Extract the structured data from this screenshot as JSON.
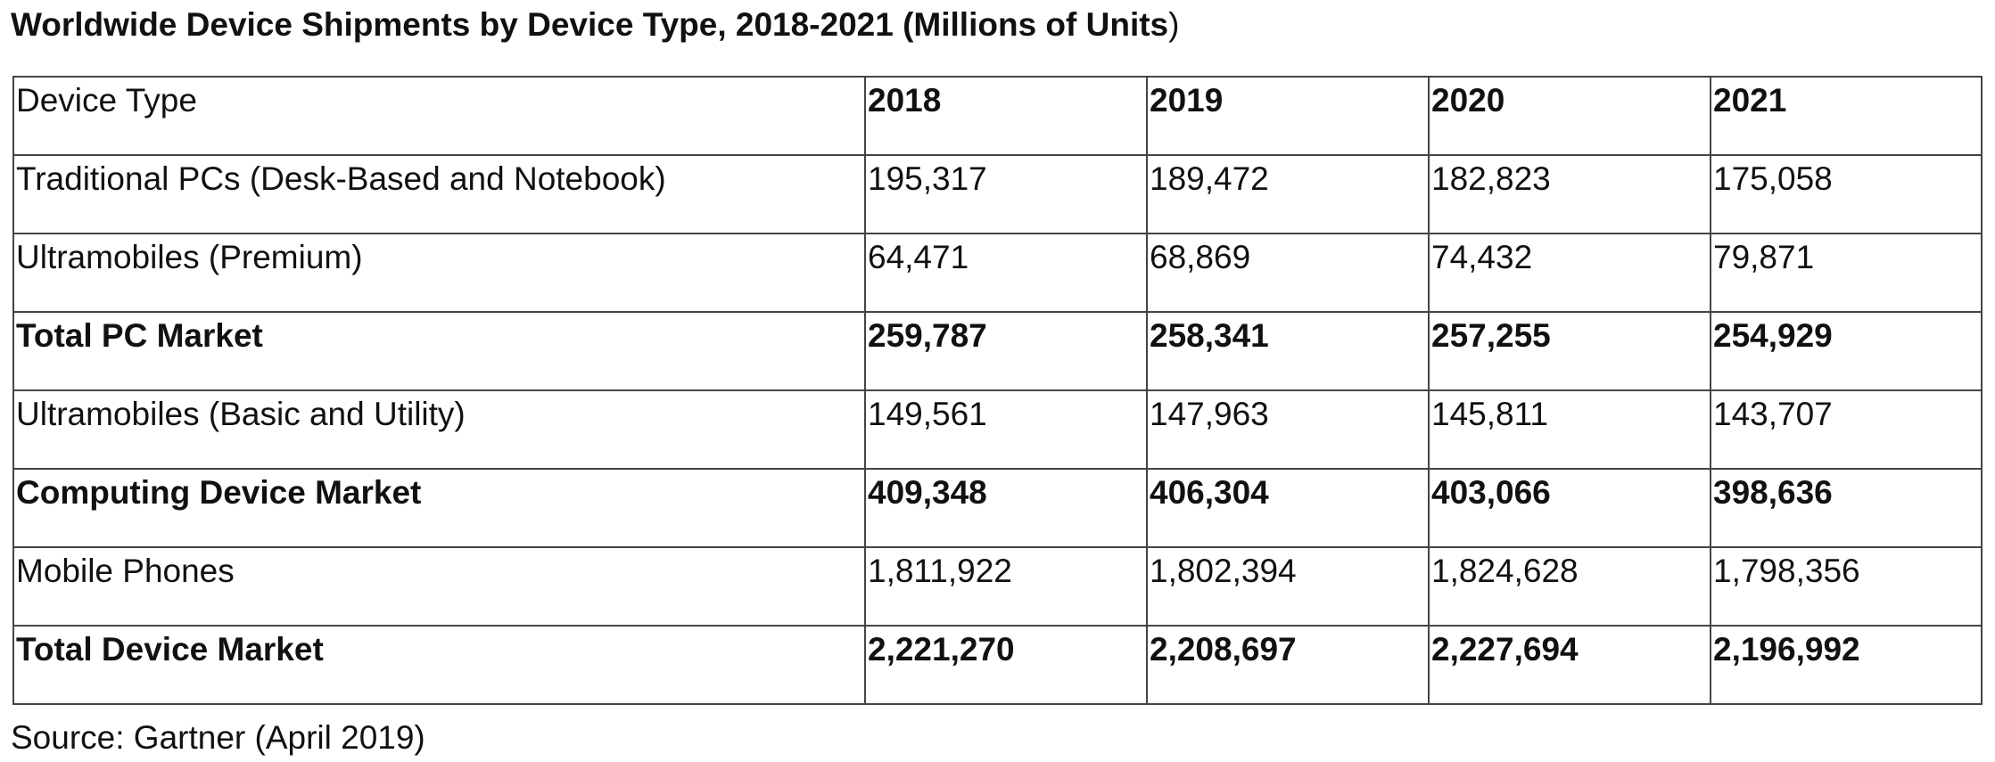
{
  "title": {
    "main": "Worldwide Device Shipments by Device Type, 2018-2021 (Millions of Units",
    "close_paren": ")"
  },
  "table": {
    "header_label": "Device Type",
    "years": [
      "2018",
      "2019",
      "2020",
      "2021"
    ],
    "rows": [
      {
        "label": "Traditional PCs (Desk-Based and Notebook)",
        "bold": false,
        "values": [
          "195,317",
          "189,472",
          "182,823",
          "175,058"
        ]
      },
      {
        "label": "Ultramobiles (Premium)",
        "bold": false,
        "values": [
          "64,471",
          "68,869",
          "74,432",
          "79,871"
        ]
      },
      {
        "label": "Total PC Market",
        "bold": true,
        "values": [
          "259,787",
          "258,341",
          "257,255",
          "254,929"
        ]
      },
      {
        "label": "Ultramobiles (Basic and Utility)",
        "bold": false,
        "values": [
          "149,561",
          "147,963",
          "145,811",
          "143,707"
        ]
      },
      {
        "label": "Computing Device Market",
        "bold": true,
        "values": [
          "409,348",
          "406,304",
          "403,066",
          "398,636"
        ]
      },
      {
        "label": "Mobile Phones",
        "bold": false,
        "values": [
          "1,811,922",
          "1,802,394",
          "1,824,628",
          "1,798,356"
        ]
      },
      {
        "label": "Total Device Market",
        "bold": true,
        "values": [
          "2,221,270",
          "2,208,697",
          "2,227,694",
          "2,196,992"
        ]
      }
    ]
  },
  "source": "Source: Gartner (April 2019)",
  "colors": {
    "text": "#111111",
    "border": "#444444",
    "background": "#ffffff"
  }
}
